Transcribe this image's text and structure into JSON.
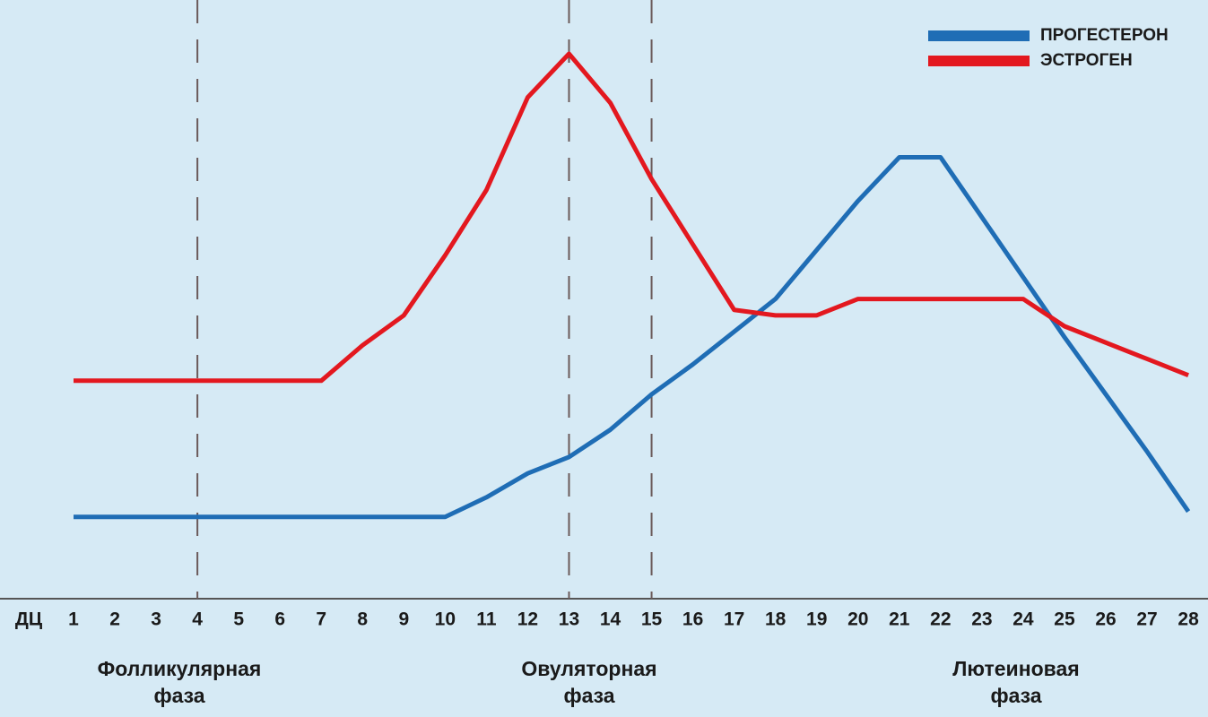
{
  "chart_data": {
    "type": "line",
    "x_label": "ДЦ",
    "x": [
      1,
      2,
      3,
      4,
      5,
      6,
      7,
      8,
      9,
      10,
      11,
      12,
      13,
      14,
      15,
      16,
      17,
      18,
      19,
      20,
      21,
      22,
      23,
      24,
      25,
      26,
      27,
      28
    ],
    "ylim": [
      0,
      100
    ],
    "series": [
      {
        "name": "ПРОГЕСТЕРОН",
        "color": "#1f6db5",
        "values": [
          15,
          15,
          15,
          15,
          15,
          15,
          15,
          15,
          15,
          15,
          18.6,
          23,
          26,
          31,
          37.5,
          43,
          49,
          55,
          64,
          73,
          81,
          81,
          70,
          59,
          48,
          37.5,
          27,
          16
        ]
      },
      {
        "name": "ЭСТРОГЕН",
        "color": "#e3181f",
        "values": [
          40,
          40,
          40,
          40,
          40,
          40,
          40,
          46.5,
          52,
          63,
          75,
          92,
          100,
          91,
          77,
          65,
          53,
          52,
          52,
          55,
          55,
          55,
          55,
          55,
          50,
          47,
          44,
          41
        ]
      }
    ],
    "phase_lines": [
      4,
      13,
      15
    ],
    "phases": [
      {
        "name": "Фолликулярная",
        "sub": "фаза"
      },
      {
        "name": "Овуляторная",
        "sub": "фаза"
      },
      {
        "name": "Лютеиновая",
        "sub": "фаза"
      }
    ]
  }
}
